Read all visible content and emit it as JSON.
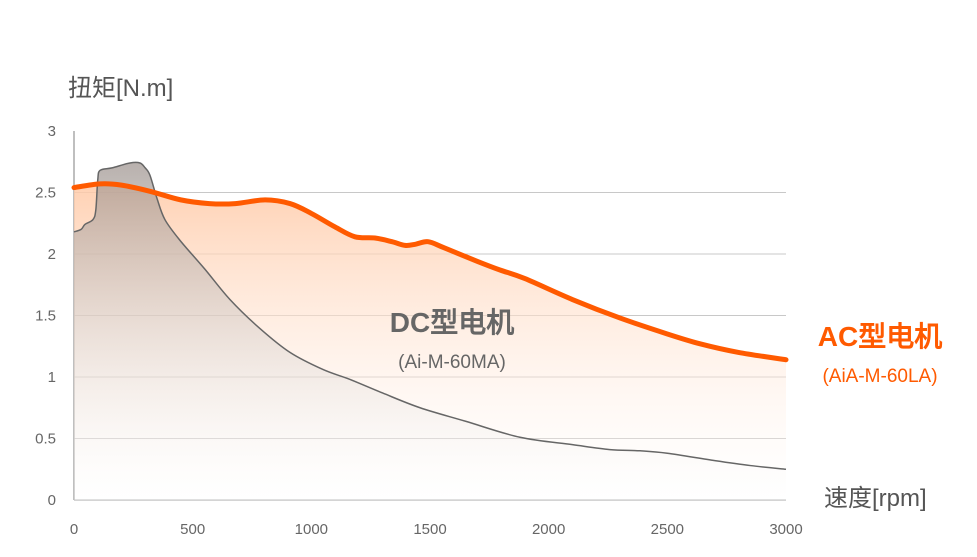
{
  "chart_data": {
    "type": "area",
    "ylabel": "扭矩[N.m]",
    "xlabel": "速度[rpm]",
    "xlim": [
      0,
      3000
    ],
    "ylim": [
      0,
      3
    ],
    "x_ticks": [
      "0",
      "500",
      "1000",
      "1500",
      "2000",
      "2500",
      "3000"
    ],
    "y_ticks": [
      "0",
      "0.5",
      "1",
      "1.5",
      "2",
      "2.5",
      "3"
    ],
    "grid": true,
    "series": [
      {
        "name": "DC型电机",
        "model": "(Ai-M-60MA)",
        "color": "#666666",
        "points": [
          [
            0,
            2.18
          ],
          [
            30,
            2.2
          ],
          [
            46,
            2.24
          ],
          [
            80,
            2.28
          ],
          [
            92,
            2.36
          ],
          [
            100,
            2.6
          ],
          [
            110,
            2.68
          ],
          [
            160,
            2.7
          ],
          [
            236,
            2.74
          ],
          [
            278,
            2.74
          ],
          [
            300,
            2.7
          ],
          [
            320,
            2.64
          ],
          [
            350,
            2.45
          ],
          [
            383,
            2.28
          ],
          [
            447,
            2.11
          ],
          [
            550,
            1.88
          ],
          [
            657,
            1.63
          ],
          [
            780,
            1.4
          ],
          [
            910,
            1.2
          ],
          [
            1050,
            1.06
          ],
          [
            1163,
            0.98
          ],
          [
            1300,
            0.87
          ],
          [
            1458,
            0.75
          ],
          [
            1650,
            0.64
          ],
          [
            1879,
            0.51
          ],
          [
            2100,
            0.45
          ],
          [
            2258,
            0.41
          ],
          [
            2385,
            0.4
          ],
          [
            2500,
            0.38
          ],
          [
            2700,
            0.32
          ],
          [
            2850,
            0.28
          ],
          [
            3000,
            0.25
          ]
        ]
      },
      {
        "name": "AC型电机",
        "model": "(AiA-M-60LA)",
        "color": "#ff5a00",
        "points": [
          [
            0,
            2.54
          ],
          [
            110,
            2.57
          ],
          [
            200,
            2.56
          ],
          [
            320,
            2.51
          ],
          [
            450,
            2.44
          ],
          [
            570,
            2.41
          ],
          [
            680,
            2.41
          ],
          [
            805,
            2.44
          ],
          [
            910,
            2.41
          ],
          [
            1000,
            2.33
          ],
          [
            1100,
            2.22
          ],
          [
            1184,
            2.14
          ],
          [
            1268,
            2.13
          ],
          [
            1340,
            2.1
          ],
          [
            1395,
            2.07
          ],
          [
            1440,
            2.08
          ],
          [
            1492,
            2.1
          ],
          [
            1560,
            2.05
          ],
          [
            1700,
            1.94
          ],
          [
            1795,
            1.87
          ],
          [
            1900,
            1.8
          ],
          [
            2100,
            1.63
          ],
          [
            2300,
            1.48
          ],
          [
            2500,
            1.35
          ],
          [
            2638,
            1.27
          ],
          [
            2800,
            1.2
          ],
          [
            3000,
            1.14
          ]
        ]
      }
    ]
  }
}
